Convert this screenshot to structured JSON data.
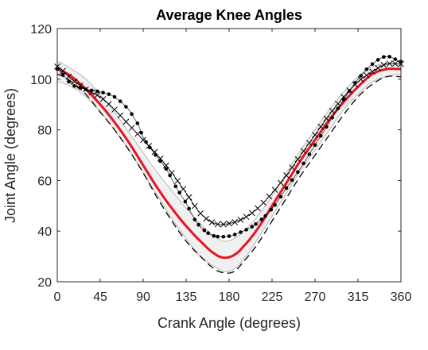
{
  "chart_data": {
    "type": "line",
    "title": "Average Knee Angles",
    "xlabel": "Crank Angle (degrees)",
    "ylabel": "Joint Angle (degrees)",
    "xlim": [
      0,
      360
    ],
    "ylim": [
      20,
      120
    ],
    "xticks": [
      0,
      45,
      90,
      135,
      180,
      225,
      270,
      315,
      360
    ],
    "yticks": [
      20,
      40,
      60,
      80,
      100,
      120
    ],
    "grid": false,
    "legend": "none",
    "series": [
      {
        "style": "band",
        "color": "#d0d0d0",
        "x": [
          0,
          15,
          30,
          45,
          60,
          75,
          90,
          105,
          120,
          135,
          150,
          165,
          175,
          185,
          195,
          210,
          225,
          240,
          255,
          270,
          285,
          300,
          315,
          330,
          345,
          360
        ],
        "upper": [
          107,
          104,
          100,
          94,
          87,
          79,
          71,
          63,
          56,
          49,
          43,
          38,
          36,
          37,
          40,
          46,
          54,
          63,
          72,
          80,
          88,
          95,
          101,
          105,
          106,
          106
        ],
        "lower": [
          99,
          97,
          93,
          87,
          80,
          72,
          63,
          54,
          45,
          37,
          30,
          26,
          24,
          25,
          29,
          37,
          46,
          55,
          64,
          72,
          80,
          88,
          94,
          99,
          101,
          102
        ]
      },
      {
        "style": "line",
        "color": "#e8141e",
        "x": [
          0,
          15,
          30,
          45,
          60,
          75,
          90,
          105,
          120,
          135,
          150,
          165,
          175,
          185,
          195,
          210,
          225,
          240,
          255,
          270,
          285,
          300,
          315,
          330,
          345,
          360
        ],
        "values": [
          104,
          101,
          96,
          90,
          83,
          75,
          66,
          57,
          49,
          42,
          36,
          31,
          29.5,
          30.5,
          34,
          41,
          50,
          59,
          68,
          76,
          84,
          91,
          97,
          102,
          104,
          104
        ]
      },
      {
        "style": "dashed",
        "color": "#000000",
        "x": [
          0,
          15,
          30,
          45,
          60,
          75,
          90,
          105,
          120,
          135,
          150,
          165,
          175,
          185,
          195,
          210,
          225,
          240,
          255,
          270,
          285,
          300,
          315,
          330,
          345,
          360
        ],
        "values": [
          102,
          99,
          94,
          87,
          80,
          72,
          63,
          53,
          44,
          36,
          30,
          25,
          23.5,
          24,
          28,
          35,
          44,
          53,
          62,
          70,
          78,
          86,
          93,
          98,
          101,
          101
        ]
      },
      {
        "style": "x-markers",
        "color": "#000000",
        "x": [
          0,
          15,
          30,
          45,
          60,
          75,
          90,
          105,
          120,
          135,
          150,
          165,
          180,
          195,
          210,
          225,
          240,
          255,
          270,
          285,
          300,
          315,
          330,
          345,
          360
        ],
        "values": [
          105,
          100,
          96,
          93,
          88,
          82,
          76,
          70,
          63,
          55,
          47,
          43,
          43,
          45,
          49,
          55,
          62,
          70,
          78,
          86,
          93,
          99,
          103,
          106,
          106
        ]
      },
      {
        "style": "dot-markers",
        "color": "#000000",
        "x": [
          0,
          15,
          30,
          45,
          60,
          75,
          85,
          90,
          97,
          105,
          115,
          125,
          135,
          145,
          155,
          165,
          180,
          195,
          205,
          215,
          225,
          240,
          255,
          270,
          285,
          300,
          315,
          330,
          345,
          360
        ],
        "values": [
          104,
          98,
          96,
          95,
          93,
          88,
          82,
          77,
          73,
          69,
          64,
          57,
          51,
          44,
          40,
          38,
          38,
          40,
          42,
          45,
          49,
          57,
          65,
          74,
          83,
          92,
          100,
          106,
          109,
          107
        ]
      }
    ]
  }
}
